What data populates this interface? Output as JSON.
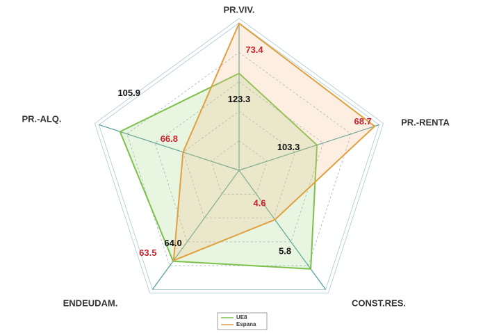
{
  "chart_data": {
    "type": "radar",
    "categories": [
      "PR.VIV.",
      "PR.-RENTA",
      "CONST.RES.",
      "ENDEUDAM.",
      "PR.-ALQ."
    ],
    "rlims": [
      [
        220,
        73
      ],
      [
        150,
        66
      ],
      [
        3.4,
        6.3
      ],
      [
        0,
        84
      ],
      [
        32,
        119
      ]
    ],
    "grid": true,
    "series": [
      {
        "name": "UE8",
        "color": "#7cc04c",
        "fill": "rgba(150,210,120,0.22)",
        "label_color": "#111111",
        "values": [
          123.3,
          103.3,
          5.8,
          64.0,
          105.9
        ],
        "value_labels": [
          "123.3",
          "103.3",
          "5.8",
          "64.0",
          "105.9"
        ]
      },
      {
        "name": "Espana",
        "color": "#e0a040",
        "fill": "rgba(245,190,140,0.25)",
        "label_color": "#c8242c",
        "values": [
          73.4,
          68.7,
          4.6,
          63.5,
          66.8
        ],
        "value_labels": [
          "73.4",
          "68.7",
          "4.6",
          "63.5",
          "66.8"
        ]
      }
    ]
  }
}
